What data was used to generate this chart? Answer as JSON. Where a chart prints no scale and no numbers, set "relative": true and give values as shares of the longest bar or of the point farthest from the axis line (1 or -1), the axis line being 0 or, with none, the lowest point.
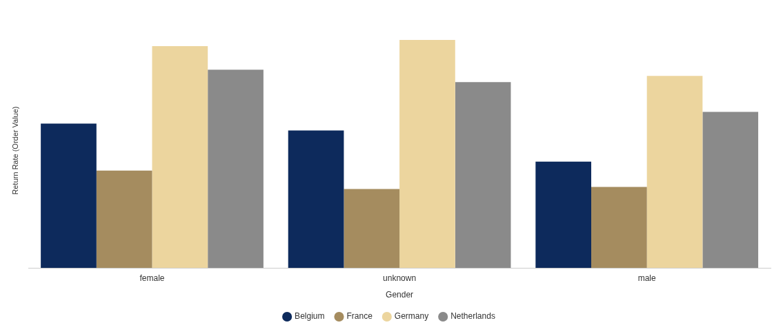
{
  "chart_data": {
    "type": "bar",
    "xlabel": "Gender",
    "ylabel": "Return Rate (Order Value)",
    "relative": true,
    "categories": [
      "female",
      "unknown",
      "male"
    ],
    "series": [
      {
        "name": "Belgium",
        "color": "#0d2a5c",
        "values": [
          0.633,
          0.603,
          0.466
        ]
      },
      {
        "name": "France",
        "color": "#a58c5f",
        "values": [
          0.427,
          0.346,
          0.355
        ]
      },
      {
        "name": "Germany",
        "color": "#ecd59e",
        "values": [
          0.973,
          1,
          0.842
        ]
      },
      {
        "name": "Netherlands",
        "color": "#8a8a8a",
        "values": [
          0.869,
          0.815,
          0.684
        ]
      }
    ],
    "legend": "bottom",
    "grid": false
  }
}
